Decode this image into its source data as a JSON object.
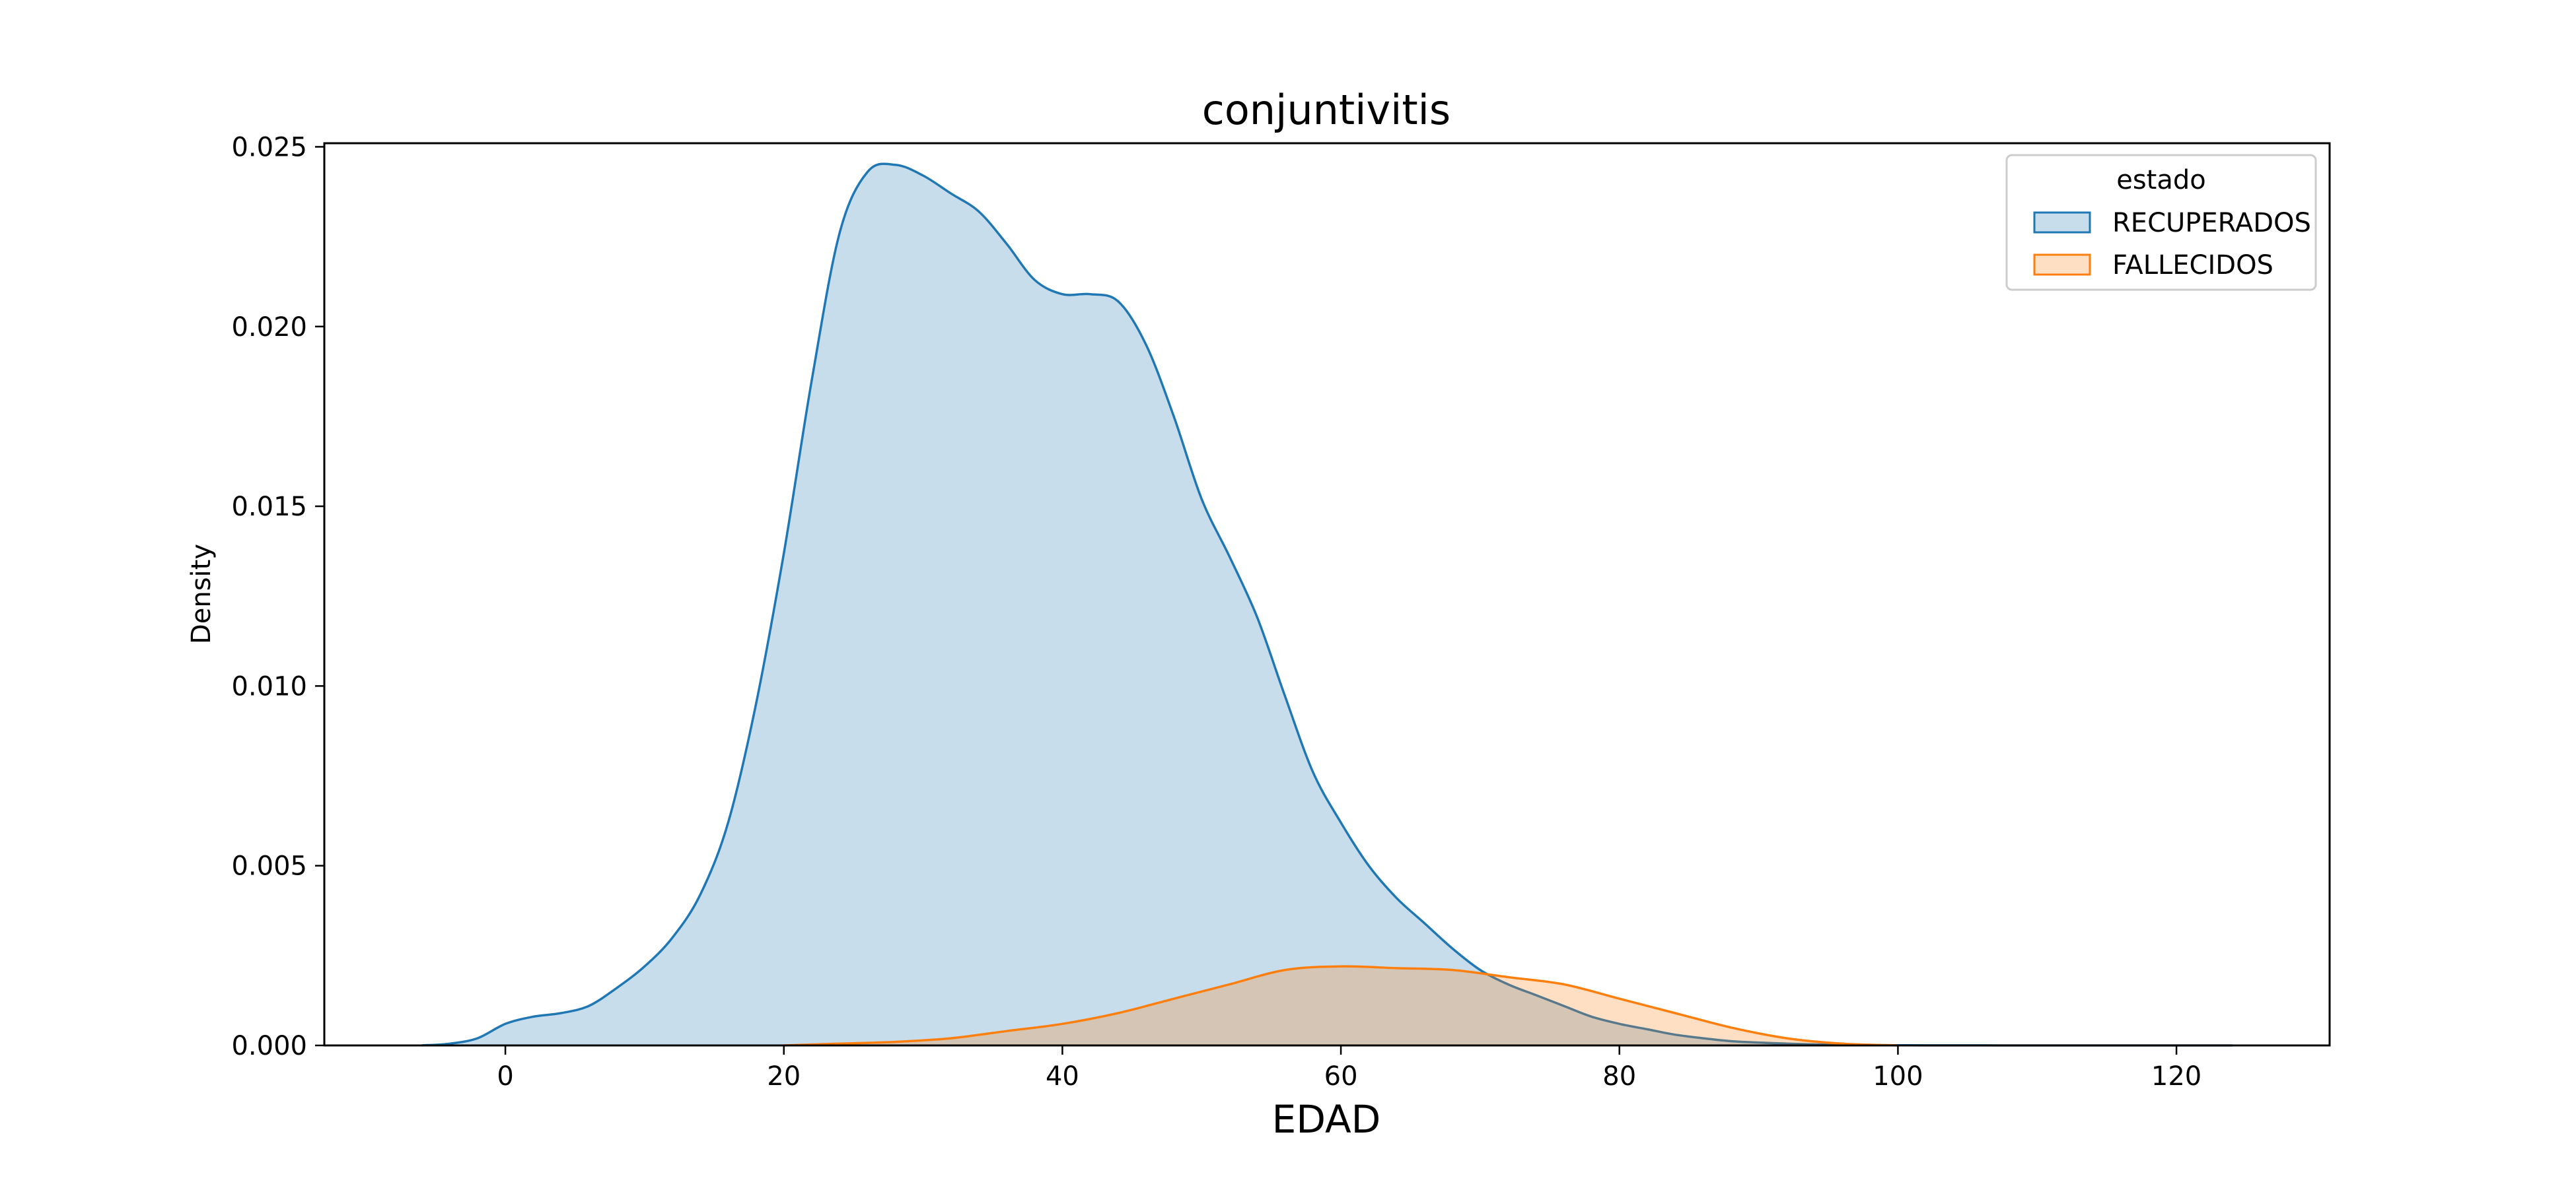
{
  "chart_data": {
    "type": "area",
    "title": "conjuntivitis",
    "xlabel": "EDAD",
    "ylabel": "Density",
    "xlim": [
      -13,
      131
    ],
    "ylim": [
      0,
      0.0251
    ],
    "xticks": [
      0,
      20,
      40,
      60,
      80,
      100,
      120
    ],
    "xtick_labels": [
      "0",
      "20",
      "40",
      "60",
      "80",
      "100",
      "120"
    ],
    "yticks": [
      0,
      0.005,
      0.01,
      0.015,
      0.02,
      0.025
    ],
    "ytick_labels": [
      "0.000",
      "0.005",
      "0.010",
      "0.015",
      "0.020",
      "0.025"
    ],
    "grid": false,
    "legend": {
      "title": "estado",
      "placement": "top-right"
    },
    "series": [
      {
        "name": "RECUPERADOS",
        "color": "#1f77b4",
        "fill": "#c6dbef",
        "x": [
          -6,
          -4,
          -2,
          0,
          2,
          4,
          6,
          8,
          10,
          12,
          14,
          16,
          18,
          20,
          22,
          24,
          26,
          28,
          30,
          32,
          34,
          36,
          38,
          40,
          42,
          44,
          46,
          48,
          50,
          52,
          54,
          56,
          58,
          60,
          62,
          64,
          66,
          68,
          70,
          72,
          74,
          76,
          78,
          80,
          82,
          84,
          86,
          88,
          90,
          92,
          94,
          96,
          98,
          100,
          102,
          106,
          110,
          116,
          120,
          124
        ],
        "y": [
          0,
          5e-05,
          0.0002,
          0.0006,
          0.0008,
          0.0009,
          0.0011,
          0.0016,
          0.0022,
          0.003,
          0.0042,
          0.0062,
          0.0095,
          0.0137,
          0.0185,
          0.0226,
          0.0243,
          0.0245,
          0.0242,
          0.0237,
          0.0232,
          0.0223,
          0.0213,
          0.0209,
          0.0209,
          0.0207,
          0.0195,
          0.0175,
          0.0152,
          0.0136,
          0.0119,
          0.0097,
          0.0076,
          0.0062,
          0.005,
          0.0041,
          0.0034,
          0.0027,
          0.0021,
          0.0017,
          0.0014,
          0.0011,
          0.0008,
          0.0006,
          0.00045,
          0.0003,
          0.0002,
          0.00012,
          8e-05,
          5e-05,
          3e-05,
          2e-05,
          1e-05,
          5e-06,
          2e-06,
          1e-06,
          0,
          0,
          0,
          0
        ]
      },
      {
        "name": "FALLECIDOS",
        "color": "#ff7f0e",
        "fill": "#fdd0a2",
        "x": [
          20,
          24,
          28,
          32,
          36,
          40,
          44,
          48,
          52,
          56,
          60,
          64,
          68,
          72,
          76,
          80,
          84,
          88,
          92,
          96,
          100
        ],
        "y": [
          0,
          5e-05,
          0.0001,
          0.0002,
          0.0004,
          0.0006,
          0.0009,
          0.0013,
          0.0017,
          0.0021,
          0.0022,
          0.00215,
          0.0021,
          0.0019,
          0.0017,
          0.0013,
          0.0009,
          0.0005,
          0.0002,
          5e-05,
          0
        ]
      }
    ]
  }
}
